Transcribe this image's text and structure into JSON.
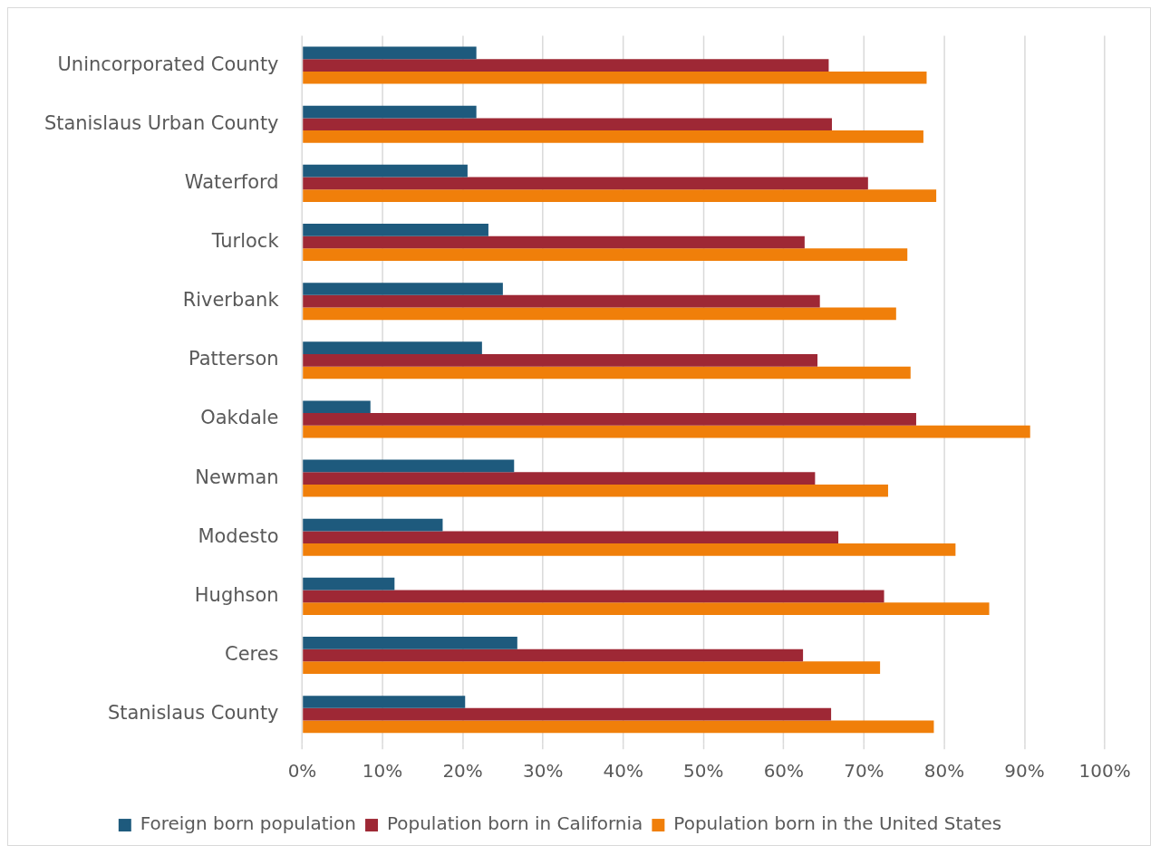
{
  "chart_data": {
    "type": "bar",
    "orientation": "horizontal",
    "categories": [
      "Unincorporated County",
      "Stanislaus Urban County",
      "Waterford",
      "Turlock",
      "Riverbank",
      "Patterson",
      "Oakdale",
      "Newman",
      "Modesto",
      "Hughson",
      "Ceres",
      "Stanislaus County"
    ],
    "series": [
      {
        "name": "Foreign born population",
        "color": "#1e5a7d",
        "values": [
          21.7,
          21.7,
          20.6,
          23.2,
          25.0,
          22.4,
          8.5,
          26.4,
          17.5,
          11.5,
          26.8,
          20.3
        ]
      },
      {
        "name": "Population born in California",
        "color": "#9e2835",
        "values": [
          65.6,
          66.0,
          70.5,
          62.6,
          64.5,
          64.2,
          76.5,
          63.9,
          66.8,
          72.5,
          62.4,
          65.9
        ]
      },
      {
        "name": "Population born in the United States",
        "color": "#f07f0a",
        "values": [
          77.8,
          77.4,
          79.0,
          75.4,
          74.0,
          75.8,
          90.7,
          73.0,
          81.4,
          85.6,
          72.0,
          78.7
        ]
      }
    ],
    "xlim": [
      0,
      100
    ],
    "xticks": [
      {
        "value": 0,
        "label": "0%"
      },
      {
        "value": 10,
        "label": "10%"
      },
      {
        "value": 20,
        "label": "20%"
      },
      {
        "value": 30,
        "label": "30%"
      },
      {
        "value": 40,
        "label": "40%"
      },
      {
        "value": 50,
        "label": "50%"
      },
      {
        "value": 60,
        "label": "60%"
      },
      {
        "value": 70,
        "label": "70%"
      },
      {
        "value": 80,
        "label": "80%"
      },
      {
        "value": 90,
        "label": "90%"
      },
      {
        "value": 100,
        "label": "100%"
      }
    ],
    "grid": "x",
    "legend": "bottom"
  }
}
